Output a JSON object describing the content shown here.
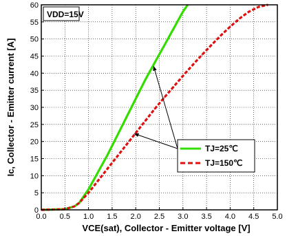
{
  "chart_data": {
    "type": "line",
    "title": "",
    "xlabel": "VCE(sat), Collector - Emitter voltage [V]",
    "ylabel": "Ic, Collector - Emitter current [A]",
    "xlim": [
      0,
      5
    ],
    "ylim": [
      0,
      60
    ],
    "xticks": [
      "0.0",
      "0.5",
      "1.0",
      "1.5",
      "2.0",
      "2.5",
      "3.0",
      "3.5",
      "4.0",
      "4.5",
      "5.0"
    ],
    "yticks": [
      "0",
      "5",
      "10",
      "15",
      "20",
      "25",
      "30",
      "35",
      "40",
      "45",
      "50",
      "55",
      "60"
    ],
    "grid": "dotted",
    "legend_position": "bottom-right",
    "annotation": "VDD=15V",
    "series": [
      {
        "name": "TJ=25℃",
        "color": "#33dd00",
        "style": "solid",
        "x": [
          0.0,
          0.5,
          0.7,
          0.8,
          0.9,
          1.0,
          1.2,
          1.4,
          1.6,
          1.8,
          2.0,
          2.2,
          2.4,
          2.6,
          2.8,
          3.0,
          3.1
        ],
        "y": [
          0,
          0.2,
          1,
          2,
          4,
          6,
          11,
          16,
          21.5,
          27,
          32.5,
          38,
          43,
          48,
          53,
          58,
          60
        ]
      },
      {
        "name": "TJ=150℃",
        "color": "#dd1111",
        "style": "dashed",
        "x": [
          0.0,
          0.5,
          0.7,
          0.8,
          0.9,
          1.0,
          1.2,
          1.4,
          1.6,
          1.8,
          2.0,
          2.2,
          2.4,
          2.6,
          2.8,
          3.0,
          3.2,
          3.4,
          3.6,
          3.8,
          4.0,
          4.2,
          4.4,
          4.6,
          4.8
        ],
        "y": [
          0,
          0.2,
          1,
          2,
          3.5,
          5,
          8.5,
          12,
          15.5,
          19,
          22.5,
          26,
          29.5,
          32.8,
          36,
          39.2,
          42.3,
          45.3,
          48.2,
          51,
          53.6,
          56,
          58,
          59.4,
          60
        ]
      }
    ]
  }
}
